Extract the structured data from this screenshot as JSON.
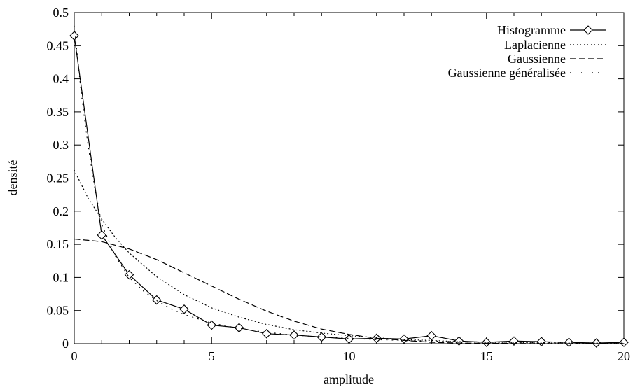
{
  "chart_data": {
    "type": "line",
    "title": "",
    "xlabel": "amplitude",
    "ylabel": "densité",
    "xlim": [
      0,
      20
    ],
    "ylim": [
      0,
      0.5
    ],
    "xticks": [
      0,
      5,
      10,
      15,
      20
    ],
    "yticks": [
      0,
      0.05,
      0.1,
      0.15,
      0.2,
      0.25,
      0.3,
      0.35,
      0.4,
      0.45,
      0.5
    ],
    "xtick_labels": [
      "0",
      "5",
      "10",
      "15",
      "20"
    ],
    "ytick_labels": [
      "0",
      "0.05",
      "0.1",
      "0.15",
      "0.2",
      "0.25",
      "0.3",
      "0.35",
      "0.4",
      "0.45",
      "0.5"
    ],
    "grid": false,
    "legend_position": "top-right",
    "series": [
      {
        "name": "Histogramme",
        "style": "solid",
        "marker": "diamond",
        "x": [
          0,
          1,
          2,
          3,
          4,
          5,
          6,
          7,
          8,
          9,
          10,
          11,
          12,
          13,
          14,
          15,
          16,
          17,
          18,
          19,
          20
        ],
        "y": [
          0.465,
          0.164,
          0.104,
          0.066,
          0.052,
          0.028,
          0.024,
          0.015,
          0.013,
          0.01,
          0.007,
          0.008,
          0.007,
          0.012,
          0.004,
          0.002,
          0.004,
          0.003,
          0.002,
          0.001,
          0.002
        ]
      },
      {
        "name": "Laplacienne",
        "style": "dotted",
        "x": [
          0,
          0.5,
          1,
          1.5,
          2,
          3,
          4,
          5,
          6,
          7,
          8,
          9,
          10,
          11,
          12,
          13,
          14,
          15,
          16,
          17,
          18,
          19,
          20
        ],
        "y": [
          0.262,
          0.22,
          0.188,
          0.16,
          0.137,
          0.101,
          0.074,
          0.054,
          0.04,
          0.029,
          0.021,
          0.016,
          0.012,
          0.009,
          0.006,
          0.005,
          0.003,
          0.002,
          0.002,
          0.001,
          0.001,
          0.001,
          0.001
        ]
      },
      {
        "name": "Gaussienne",
        "style": "dashed",
        "x": [
          0,
          1,
          2,
          3,
          4,
          5,
          6,
          7,
          8,
          9,
          10,
          11,
          12,
          13,
          14,
          15,
          16,
          17,
          18,
          19,
          20
        ],
        "y": [
          0.158,
          0.154,
          0.143,
          0.127,
          0.107,
          0.087,
          0.067,
          0.049,
          0.034,
          0.022,
          0.014,
          0.008,
          0.005,
          0.002,
          0.001,
          0.0006,
          0.0003,
          0.0001,
          5e-05,
          2e-05,
          1e-05
        ]
      },
      {
        "name": "Gaussienne généralisée",
        "style": "dotted-sparse",
        "x": [
          0,
          0.25,
          0.5,
          0.75,
          1,
          1.5,
          2,
          2.5,
          3,
          3.5,
          4,
          5,
          6,
          7,
          8,
          9,
          10,
          11,
          12,
          13,
          14,
          15,
          16,
          17,
          18,
          19,
          20
        ],
        "y": [
          0.48,
          0.38,
          0.3,
          0.235,
          0.18,
          0.132,
          0.1,
          0.08,
          0.065,
          0.053,
          0.044,
          0.031,
          0.023,
          0.017,
          0.013,
          0.01,
          0.008,
          0.006,
          0.005,
          0.004,
          0.003,
          0.0025,
          0.002,
          0.0016,
          0.0013,
          0.001,
          0.0008
        ]
      }
    ]
  }
}
